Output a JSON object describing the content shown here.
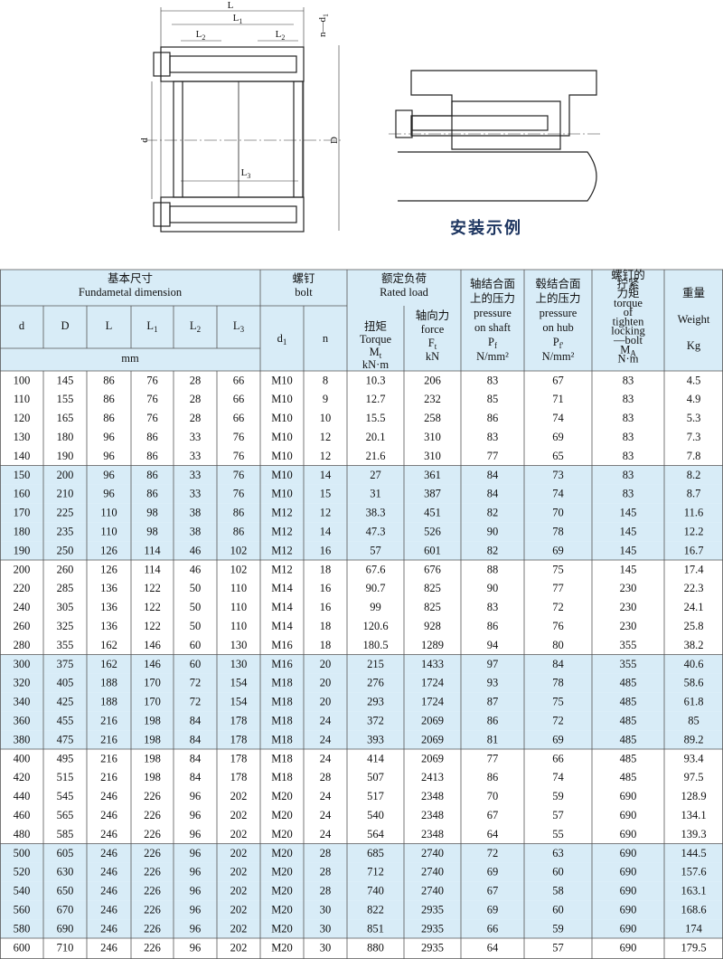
{
  "drawing": {
    "dims": [
      {
        "base": "L"
      },
      {
        "base": "L",
        "sub": "1"
      },
      {
        "base": "L",
        "sub": "2"
      },
      {
        "base": "L",
        "sub": "2"
      },
      {
        "base": "n—d",
        "sub": "1"
      },
      {
        "base": "d"
      },
      {
        "base": "D"
      },
      {
        "base": "L",
        "sub": "3"
      }
    ],
    "caption": "安装示例"
  },
  "table": {
    "groups": [
      {
        "zh": "基本尺寸",
        "en": "Fundametal dimension"
      },
      {
        "zh": "螺钉",
        "en": "bolt"
      },
      {
        "zh": "额定负荷",
        "en": "Rated load"
      }
    ],
    "basic_columns": [
      {
        "base": "d"
      },
      {
        "base": "D"
      },
      {
        "base": "L"
      },
      {
        "base": "L",
        "sub": "1"
      },
      {
        "base": "L",
        "sub": "2"
      },
      {
        "base": "L",
        "sub": "3"
      }
    ],
    "basic_unit": "mm",
    "bolt_columns": [
      {
        "base": "d",
        "sub": "1"
      },
      {
        "base": "n"
      }
    ],
    "torque_header": [
      "扭矩",
      "Torque",
      {
        "base": "M",
        "sub": "t"
      },
      "kN·m"
    ],
    "force_header": [
      "轴向力",
      "force",
      {
        "base": "F",
        "sub": "t"
      },
      "kN"
    ],
    "shaft_header": [
      "轴结合面",
      "上的压力",
      "pressure",
      "on shaft",
      {
        "base": "P",
        "sub": "f"
      },
      "N/mm²"
    ],
    "hub_header": [
      "毂结合面",
      "上的压力",
      "pressure",
      "on hub",
      {
        "base": "P",
        "sub": "f'"
      },
      "N/mm²"
    ],
    "bolt_torque_header": [
      "螺钉的",
      "拧紧",
      "力矩",
      "torque",
      "of",
      "tighten",
      "locking",
      "—bolt",
      {
        "base": "M",
        "sub": "A"
      },
      "N·m"
    ],
    "weight_header": [
      "重量",
      "Weight",
      "Kg"
    ],
    "rows": [
      [
        "100",
        "145",
        "86",
        "76",
        "28",
        "66",
        "M10",
        "8",
        "10.3",
        "206",
        "83",
        "67",
        "83",
        "4.5"
      ],
      [
        "110",
        "155",
        "86",
        "76",
        "28",
        "66",
        "M10",
        "9",
        "12.7",
        "232",
        "85",
        "71",
        "83",
        "4.9"
      ],
      [
        "120",
        "165",
        "86",
        "76",
        "28",
        "66",
        "M10",
        "10",
        "15.5",
        "258",
        "86",
        "74",
        "83",
        "5.3"
      ],
      [
        "130",
        "180",
        "96",
        "86",
        "33",
        "76",
        "M10",
        "12",
        "20.1",
        "310",
        "83",
        "69",
        "83",
        "7.3"
      ],
      [
        "140",
        "190",
        "96",
        "86",
        "33",
        "76",
        "M10",
        "12",
        "21.6",
        "310",
        "77",
        "65",
        "83",
        "7.8"
      ],
      [
        "150",
        "200",
        "96",
        "86",
        "33",
        "76",
        "M10",
        "14",
        "27",
        "361",
        "84",
        "73",
        "83",
        "8.2"
      ],
      [
        "160",
        "210",
        "96",
        "86",
        "33",
        "76",
        "M10",
        "15",
        "31",
        "387",
        "84",
        "74",
        "83",
        "8.7"
      ],
      [
        "170",
        "225",
        "110",
        "98",
        "38",
        "86",
        "M12",
        "12",
        "38.3",
        "451",
        "82",
        "70",
        "145",
        "11.6"
      ],
      [
        "180",
        "235",
        "110",
        "98",
        "38",
        "86",
        "M12",
        "14",
        "47.3",
        "526",
        "90",
        "78",
        "145",
        "12.2"
      ],
      [
        "190",
        "250",
        "126",
        "114",
        "46",
        "102",
        "M12",
        "16",
        "57",
        "601",
        "82",
        "69",
        "145",
        "16.7"
      ],
      [
        "200",
        "260",
        "126",
        "114",
        "46",
        "102",
        "M12",
        "18",
        "67.6",
        "676",
        "88",
        "75",
        "145",
        "17.4"
      ],
      [
        "220",
        "285",
        "136",
        "122",
        "50",
        "110",
        "M14",
        "16",
        "90.7",
        "825",
        "90",
        "77",
        "230",
        "22.3"
      ],
      [
        "240",
        "305",
        "136",
        "122",
        "50",
        "110",
        "M14",
        "16",
        "99",
        "825",
        "83",
        "72",
        "230",
        "24.1"
      ],
      [
        "260",
        "325",
        "136",
        "122",
        "50",
        "110",
        "M14",
        "18",
        "120.6",
        "928",
        "86",
        "76",
        "230",
        "25.8"
      ],
      [
        "280",
        "355",
        "162",
        "146",
        "60",
        "130",
        "M16",
        "18",
        "180.5",
        "1289",
        "94",
        "80",
        "355",
        "38.2"
      ],
      [
        "300",
        "375",
        "162",
        "146",
        "60",
        "130",
        "M16",
        "20",
        "215",
        "1433",
        "97",
        "84",
        "355",
        "40.6"
      ],
      [
        "320",
        "405",
        "188",
        "170",
        "72",
        "154",
        "M18",
        "20",
        "276",
        "1724",
        "93",
        "78",
        "485",
        "58.6"
      ],
      [
        "340",
        "425",
        "188",
        "170",
        "72",
        "154",
        "M18",
        "20",
        "293",
        "1724",
        "87",
        "75",
        "485",
        "61.8"
      ],
      [
        "360",
        "455",
        "216",
        "198",
        "84",
        "178",
        "M18",
        "24",
        "372",
        "2069",
        "86",
        "72",
        "485",
        "85"
      ],
      [
        "380",
        "475",
        "216",
        "198",
        "84",
        "178",
        "M18",
        "24",
        "393",
        "2069",
        "81",
        "69",
        "485",
        "89.2"
      ],
      [
        "400",
        "495",
        "216",
        "198",
        "84",
        "178",
        "M18",
        "24",
        "414",
        "2069",
        "77",
        "66",
        "485",
        "93.4"
      ],
      [
        "420",
        "515",
        "216",
        "198",
        "84",
        "178",
        "M18",
        "28",
        "507",
        "2413",
        "86",
        "74",
        "485",
        "97.5"
      ],
      [
        "440",
        "545",
        "246",
        "226",
        "96",
        "202",
        "M20",
        "24",
        "517",
        "2348",
        "70",
        "59",
        "690",
        "128.9"
      ],
      [
        "460",
        "565",
        "246",
        "226",
        "96",
        "202",
        "M20",
        "24",
        "540",
        "2348",
        "67",
        "57",
        "690",
        "134.1"
      ],
      [
        "480",
        "585",
        "246",
        "226",
        "96",
        "202",
        "M20",
        "24",
        "564",
        "2348",
        "64",
        "55",
        "690",
        "139.3"
      ],
      [
        "500",
        "605",
        "246",
        "226",
        "96",
        "202",
        "M20",
        "28",
        "685",
        "2740",
        "72",
        "63",
        "690",
        "144.5"
      ],
      [
        "520",
        "630",
        "246",
        "226",
        "96",
        "202",
        "M20",
        "28",
        "712",
        "2740",
        "69",
        "60",
        "690",
        "157.6"
      ],
      [
        "540",
        "650",
        "246",
        "226",
        "96",
        "202",
        "M20",
        "28",
        "740",
        "2740",
        "67",
        "58",
        "690",
        "163.1"
      ],
      [
        "560",
        "670",
        "246",
        "226",
        "96",
        "202",
        "M20",
        "30",
        "822",
        "2935",
        "69",
        "60",
        "690",
        "168.6"
      ],
      [
        "580",
        "690",
        "246",
        "226",
        "96",
        "202",
        "M20",
        "30",
        "851",
        "2935",
        "66",
        "59",
        "690",
        "174"
      ],
      [
        "600",
        "710",
        "246",
        "226",
        "96",
        "202",
        "M20",
        "30",
        "880",
        "2935",
        "64",
        "57",
        "690",
        "179.5"
      ]
    ]
  }
}
